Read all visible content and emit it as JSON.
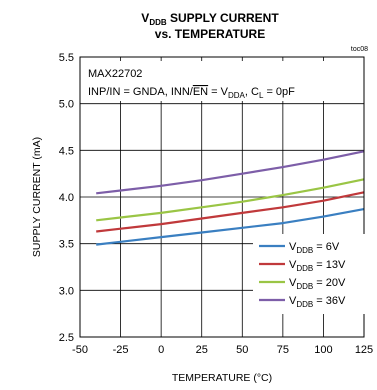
{
  "chart_data": {
    "type": "line",
    "title": {
      "line1_main": "V",
      "line1_sub": "DDB",
      "line1_rest": " SUPPLY CURRENT",
      "line2": "vs. TEMPERATURE"
    },
    "toc": "toc08",
    "xlabel": "TEMPERATURE (°C)",
    "ylabel": "SUPPLY CURRENT (mA)",
    "xlim": [
      -50,
      125
    ],
    "ylim": [
      2.5,
      5.5
    ],
    "x_ticks": [
      -50,
      -25,
      0,
      25,
      50,
      75,
      100,
      125
    ],
    "x_tick_labels": [
      "-50",
      "-25",
      "0",
      "25",
      "50",
      "75",
      "100",
      "125"
    ],
    "y_ticks": [
      2.5,
      3.0,
      3.5,
      4.0,
      4.5,
      5.0,
      5.5
    ],
    "y_tick_labels": [
      "2.5",
      "3.0",
      "3.5",
      "4.0",
      "4.5",
      "5.0",
      "5.5"
    ],
    "grid": true,
    "legend_position": "bottom-right",
    "annotation": {
      "line1": "MAX22702",
      "line2_parts": [
        "INP/IN = GNDA, INN/",
        "EN",
        " = V",
        "DDA",
        ", C",
        "L",
        " = 0pF"
      ]
    },
    "x": [
      -40,
      -25,
      0,
      25,
      50,
      75,
      100,
      125
    ],
    "series": [
      {
        "name_main": "V",
        "name_sub": "DDB",
        "name_rest": " = 6V",
        "color": "#3a7fc1",
        "values": [
          3.49,
          3.52,
          3.57,
          3.62,
          3.67,
          3.72,
          3.79,
          3.87
        ]
      },
      {
        "name_main": "V",
        "name_sub": "DDB",
        "name_rest": " = 13V",
        "color": "#c0393b",
        "values": [
          3.63,
          3.66,
          3.71,
          3.77,
          3.83,
          3.89,
          3.96,
          4.05
        ]
      },
      {
        "name_main": "V",
        "name_sub": "DDB",
        "name_rest": " = 20V",
        "color": "#9ac545",
        "values": [
          3.75,
          3.78,
          3.83,
          3.89,
          3.95,
          4.02,
          4.1,
          4.19
        ]
      },
      {
        "name_main": "V",
        "name_sub": "DDB",
        "name_rest": " = 36V",
        "color": "#7d5ea8",
        "values": [
          4.04,
          4.07,
          4.12,
          4.18,
          4.25,
          4.32,
          4.4,
          4.49
        ]
      }
    ]
  }
}
